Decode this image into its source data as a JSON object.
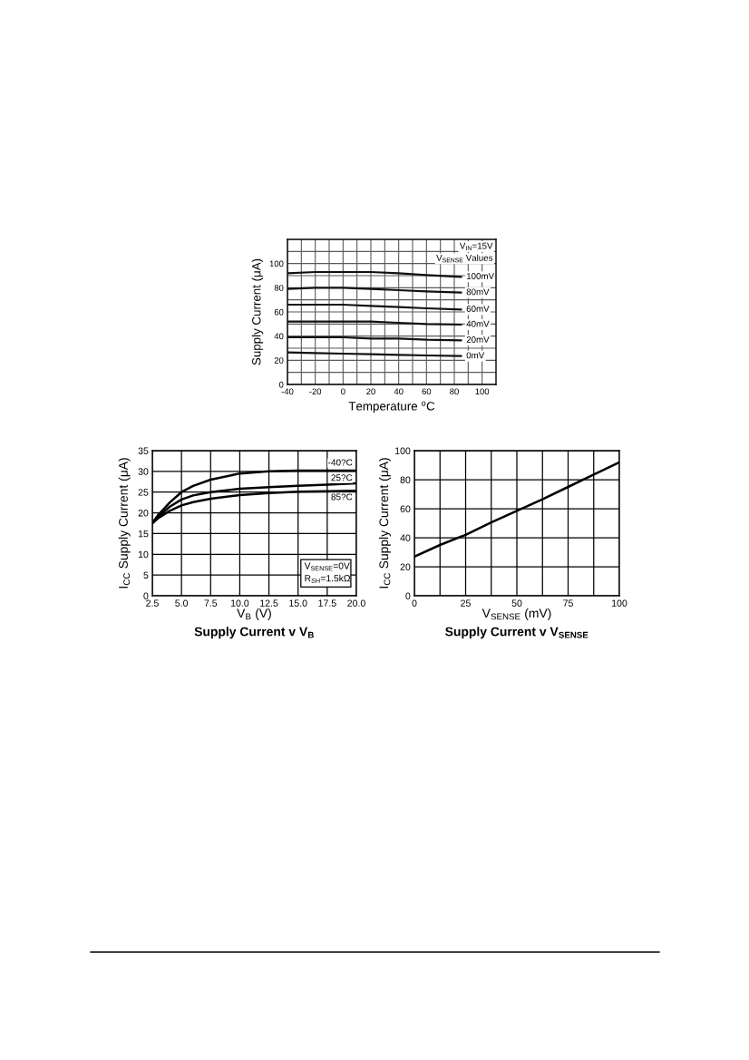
{
  "chart_data": [
    {
      "type": "line",
      "xlabel": "Temperature $^{o}$C",
      "ylabel": "Supply Current (μA)",
      "x": [
        -40,
        -20,
        0,
        20,
        40,
        60,
        85
      ],
      "series": [
        {
          "name": "100mV",
          "color": "#111111",
          "values": [
            92,
            93,
            93,
            93,
            92,
            90.5,
            89
          ]
        },
        {
          "name": "80mV",
          "color": "#111111",
          "values": [
            79,
            80,
            80,
            79,
            78,
            77,
            76
          ]
        },
        {
          "name": "60mV",
          "color": "#111111",
          "values": [
            66,
            66,
            66,
            65,
            64,
            63,
            62
          ]
        },
        {
          "name": "40mV",
          "color": "#111111",
          "values": [
            52,
            52,
            52,
            52,
            51,
            50,
            49.5
          ]
        },
        {
          "name": "20mV",
          "color": "#111111",
          "values": [
            39,
            39,
            39,
            38,
            38,
            37,
            36.5
          ]
        },
        {
          "name": "0mV",
          "color": "#111111",
          "values": [
            26.5,
            26,
            25.5,
            25,
            24.5,
            24,
            23.5
          ]
        }
      ],
      "xlim": [
        -40,
        110
      ],
      "ylim": [
        0,
        120
      ],
      "xticks": [
        -40,
        {
          "value": -30,
          "label": null
        },
        -20,
        {
          "value": -10,
          "label": null
        },
        0,
        {
          "value": 10,
          "label": null
        },
        20,
        {
          "value": 30,
          "label": null
        },
        40,
        {
          "value": 50,
          "label": null
        },
        60,
        {
          "value": 70,
          "label": null
        },
        80,
        {
          "value": 90,
          "label": null
        },
        100
      ],
      "yticks": [
        0,
        {
          "value": 10,
          "label": null
        },
        20,
        {
          "value": 30,
          "label": null
        },
        40,
        {
          "value": 50,
          "label": null
        },
        60,
        {
          "value": 70,
          "label": null
        },
        80,
        {
          "value": 90,
          "label": null
        },
        100,
        {
          "value": 110,
          "label": null
        }
      ],
      "grid": true,
      "annotations": [
        "V$_{IN}$=15V",
        "V$_{SENSE}$ Values"
      ]
    },
    {
      "type": "line",
      "title": "Supply Current v V$_{B}$",
      "xlabel": "V$_{B}$ (V)",
      "ylabel": "I$_{CC}$ Supply Current (μA)",
      "x": [
        2.5,
        3.0,
        3.5,
        4.0,
        5.0,
        6.0,
        7.5,
        10.0,
        12.5,
        15.0,
        17.5,
        20.0
      ],
      "series": [
        {
          "name": "-40?C",
          "color": "#000000",
          "values": [
            17.5,
            19.5,
            21,
            22.5,
            25,
            26.5,
            28,
            29.5,
            30,
            30.2,
            30.2,
            30.2
          ]
        },
        {
          "name": "25?C",
          "color": "#000000",
          "values": [
            17.5,
            19,
            20.3,
            21.5,
            23.2,
            24.2,
            25,
            25.8,
            26.2,
            26.5,
            26.8,
            27.1
          ]
        },
        {
          "name": "85?C",
          "color": "#000000",
          "values": [
            17.5,
            18.7,
            19.6,
            20.5,
            21.8,
            22.6,
            23.4,
            24.3,
            24.8,
            25.1,
            25.2,
            25.3
          ]
        }
      ],
      "xlim": [
        2.5,
        20
      ],
      "ylim": [
        0,
        35
      ],
      "xticks": [
        2.5,
        {
          "value": 5,
          "label": "5.0"
        },
        7.5,
        {
          "value": 10,
          "label": "10.0"
        },
        12.5,
        {
          "value": 15,
          "label": "15.0"
        },
        17.5,
        {
          "value": 20,
          "label": "20.0"
        }
      ],
      "yticks": [
        0,
        5,
        10,
        15,
        20,
        25,
        30,
        35
      ],
      "grid": true,
      "annotations": [
        "V$_{SENSE}$=0V",
        "R$_{SH}$=1.5kΩ"
      ]
    },
    {
      "type": "line",
      "title": "Supply Current v V$_{SENSE}$",
      "xlabel": "V$_{SENSE}$ (mV)",
      "ylabel": "I$_{CC}$ Supply Current (μA)",
      "x": [
        0,
        12.5,
        25,
        37.5,
        50,
        62.5,
        75,
        87.5,
        100
      ],
      "series": [
        {
          "color": "#000000",
          "values": [
            27,
            35,
            42,
            50.5,
            58.5,
            66.5,
            75,
            83.5,
            92
          ]
        }
      ],
      "xlim": [
        0,
        100
      ],
      "ylim": [
        0,
        100
      ],
      "xticks": [
        0,
        {
          "value": 12.5,
          "label": null
        },
        25,
        {
          "value": 37.5,
          "label": null
        },
        50,
        {
          "value": 62.5,
          "label": null
        },
        75,
        {
          "value": 87.5,
          "label": null
        },
        100
      ],
      "yticks": [
        0,
        20,
        40,
        60,
        80,
        100
      ],
      "grid": true
    }
  ]
}
